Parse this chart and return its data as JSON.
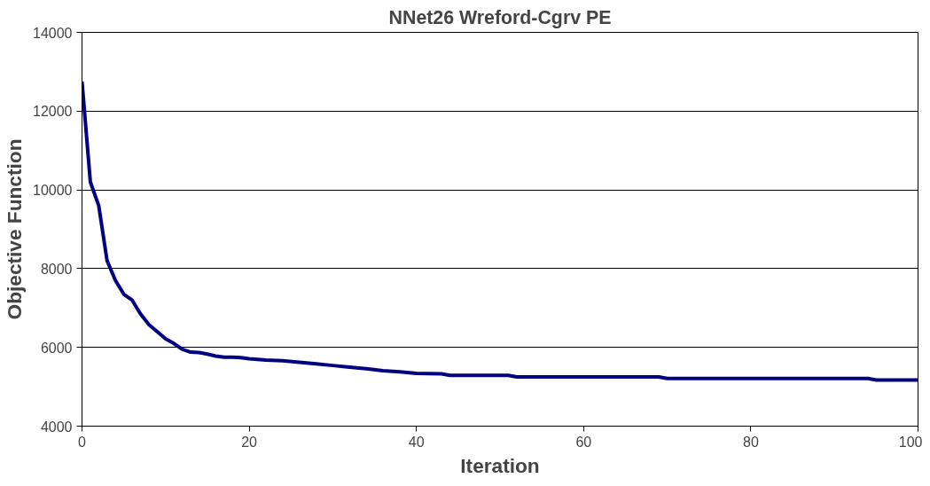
{
  "chart_data": {
    "type": "line",
    "title": "NNet26 Wreford-Cgrv PE",
    "xlabel": "Iteration",
    "ylabel": "Objective Function",
    "x": [
      0,
      1,
      2,
      3,
      4,
      5,
      6,
      7,
      8,
      9,
      10,
      11,
      12,
      13,
      14,
      15,
      16,
      17,
      18,
      19,
      20,
      22,
      24,
      26,
      28,
      30,
      32,
      34,
      36,
      38,
      40,
      43,
      44,
      51,
      52,
      69,
      70,
      94,
      95,
      100
    ],
    "series": [
      {
        "color": "#000080",
        "values": [
          12750,
          10200,
          9600,
          8200,
          7700,
          7350,
          7200,
          6850,
          6580,
          6400,
          6220,
          6100,
          5950,
          5880,
          5870,
          5830,
          5780,
          5750,
          5750,
          5740,
          5710,
          5680,
          5660,
          5620,
          5580,
          5540,
          5500,
          5460,
          5410,
          5380,
          5340,
          5330,
          5290,
          5290,
          5250,
          5250,
          5210,
          5210,
          5170,
          5170
        ]
      }
    ],
    "xlim": [
      0,
      100
    ],
    "xticks": [
      0,
      20,
      40,
      60,
      80,
      100
    ],
    "ylim": [
      4000,
      14000
    ],
    "yticks": [
      4000,
      6000,
      8000,
      10000,
      12000,
      14000
    ],
    "grid": "y",
    "marker": "none",
    "line_style": "solid"
  }
}
